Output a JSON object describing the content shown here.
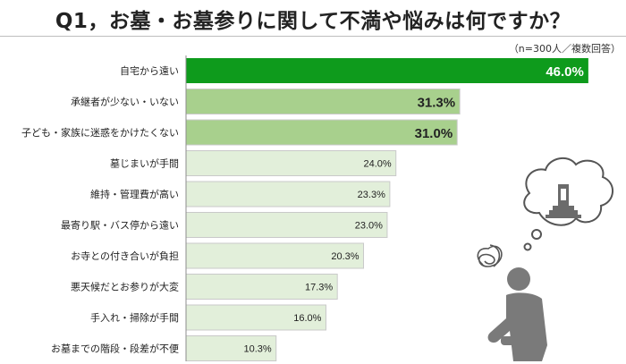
{
  "header": {
    "title": "Q1，お墓・お墓参りに関して不満や悩みは何ですか？",
    "note": "（n=300人／複数回答）"
  },
  "colors": {
    "top": "#0e9b1c",
    "mid": "#a8d08d",
    "low": "#e2efda",
    "track_border": "#c9c9c9",
    "axis": "#8c8c8c"
  },
  "icon": {
    "name": "worried-person-thinking-of-grave-icon"
  },
  "chart_data": {
    "type": "bar",
    "orientation": "horizontal",
    "categories": [
      "自宅から遠い",
      "承継者が少ない・いない",
      "子ども・家族に迷惑をかけたくない",
      "墓じまいが手間",
      "維持・管理費が高い",
      "最寄り駅・バス停から遠い",
      "お寺との付き合いが負担",
      "悪天候だとお参りが大変",
      "手入れ・掃除が手間",
      "お墓までの階段・段差が不便"
    ],
    "values": [
      46.0,
      31.3,
      31.0,
      24.0,
      23.3,
      23.0,
      20.3,
      17.3,
      16.0,
      10.3
    ],
    "labels": [
      "46.0%",
      "31.3%",
      "31.0%",
      "24.0%",
      "23.3%",
      "23.0%",
      "20.3%",
      "17.3%",
      "16.0%",
      "10.3%"
    ],
    "xlim": [
      0,
      50
    ],
    "grid": false,
    "legend": "none"
  }
}
